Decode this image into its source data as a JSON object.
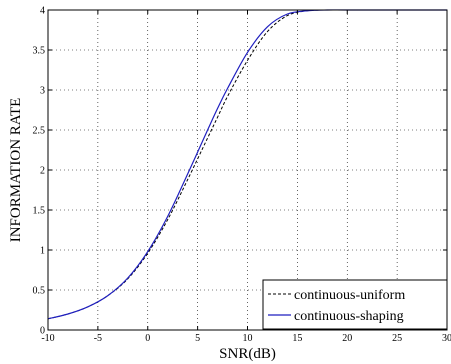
{
  "chart_data": {
    "type": "line",
    "title": "",
    "xlabel": "SNR(dB)",
    "ylabel": "INFORMATION RATE",
    "xlim": [
      -10,
      30
    ],
    "ylim": [
      0,
      4
    ],
    "x_ticks": [
      "-10",
      "-5",
      "0",
      "5",
      "10",
      "15",
      "20",
      "25",
      "30"
    ],
    "y_ticks": [
      "0",
      "0.5",
      "1",
      "1.5",
      "2",
      "2.5",
      "3",
      "3.5",
      "4"
    ],
    "grid": true,
    "legend_position": "bottom-right",
    "series": [
      {
        "name": "continuous-uniform",
        "color": "#000000",
        "style": "dashed",
        "x": [
          -10,
          -8,
          -6,
          -4,
          -2,
          0,
          2,
          4,
          6,
          7,
          8,
          10,
          12,
          14,
          16,
          18,
          20,
          25,
          30
        ],
        "y": [
          0.14,
          0.2,
          0.29,
          0.43,
          0.64,
          0.96,
          1.38,
          1.88,
          2.4,
          2.66,
          2.92,
          3.37,
          3.73,
          3.93,
          3.99,
          4.0,
          4.0,
          4.0,
          4.0
        ]
      },
      {
        "name": "continuous-shaping",
        "color": "#1f1fbf",
        "style": "solid",
        "x": [
          -10,
          -8,
          -6,
          -4,
          -2,
          0,
          2,
          4,
          6,
          7,
          8,
          10,
          12,
          14,
          16,
          18,
          20,
          25,
          30
        ],
        "y": [
          0.14,
          0.2,
          0.29,
          0.43,
          0.65,
          0.98,
          1.42,
          1.95,
          2.5,
          2.77,
          3.02,
          3.47,
          3.79,
          3.95,
          3.99,
          4.0,
          4.0,
          4.0,
          4.0
        ]
      }
    ]
  }
}
